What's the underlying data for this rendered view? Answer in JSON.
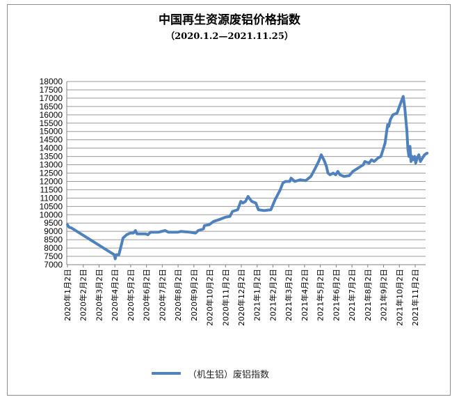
{
  "chart_data": {
    "type": "line",
    "title": "中国再生资源废铝价格指数",
    "subtitle": "（2020.1.2—2021.11.25）",
    "xlabel": "",
    "ylabel": "",
    "ylim": [
      7000,
      18000
    ],
    "y_ticks": [
      7000,
      7500,
      8000,
      8500,
      9000,
      9500,
      10000,
      10500,
      11000,
      11500,
      12000,
      12500,
      13000,
      13500,
      14000,
      14500,
      15000,
      15500,
      16000,
      16500,
      17000,
      17500,
      18000
    ],
    "x_ticks": [
      "2020年1月2日",
      "2020年2月2日",
      "2020年3月2日",
      "2020年4月2日",
      "2020年5月2日",
      "2020年6月2日",
      "2020年7月2日",
      "2020年8月2日",
      "2020年9月2日",
      "2020年10月2日",
      "2020年11月2日",
      "2020年12月2日",
      "2021年1月2日",
      "2021年2月2日",
      "2021年3月2日",
      "2021年4月2日",
      "2021年5月2日",
      "2021年6月2日",
      "2021年7月2日",
      "2021年8月2日",
      "2021年9月2日",
      "2021年10月2日",
      "2021年11月2日"
    ],
    "grid": true,
    "legend_position": "bottom",
    "series": [
      {
        "name": "（机生铝）废铝指数",
        "color": "#4f81bd",
        "points": [
          [
            "2020-01-02",
            9400
          ],
          [
            "2020-01-05",
            9250
          ],
          [
            "2020-01-10",
            9200
          ],
          [
            "2020-04-01",
            7600
          ],
          [
            "2020-04-03",
            7350
          ],
          [
            "2020-04-05",
            7600
          ],
          [
            "2020-04-10",
            7600
          ],
          [
            "2020-04-15",
            8200
          ],
          [
            "2020-04-18",
            8600
          ],
          [
            "2020-04-25",
            8800
          ],
          [
            "2020-05-02",
            8900
          ],
          [
            "2020-05-08",
            8900
          ],
          [
            "2020-05-12",
            9050
          ],
          [
            "2020-05-15",
            8850
          ],
          [
            "2020-06-01",
            8850
          ],
          [
            "2020-06-05",
            8800
          ],
          [
            "2020-06-10",
            8950
          ],
          [
            "2020-06-25",
            8950
          ],
          [
            "2020-07-08",
            9050
          ],
          [
            "2020-07-15",
            8950
          ],
          [
            "2020-08-01",
            8950
          ],
          [
            "2020-08-08",
            9000
          ],
          [
            "2020-08-25",
            8950
          ],
          [
            "2020-09-05",
            8900
          ],
          [
            "2020-09-10",
            9050
          ],
          [
            "2020-09-20",
            9150
          ],
          [
            "2020-09-22",
            9350
          ],
          [
            "2020-10-01",
            9400
          ],
          [
            "2020-10-10",
            9600
          ],
          [
            "2020-10-20",
            9700
          ],
          [
            "2020-11-01",
            9850
          ],
          [
            "2020-11-10",
            9900
          ],
          [
            "2020-11-15",
            10200
          ],
          [
            "2020-11-25",
            10300
          ],
          [
            "2020-12-01",
            10800
          ],
          [
            "2020-12-05",
            10700
          ],
          [
            "2020-12-10",
            10800
          ],
          [
            "2020-12-15",
            11100
          ],
          [
            "2020-12-22",
            10800
          ],
          [
            "2020-12-30",
            10700
          ],
          [
            "2021-01-04",
            10300
          ],
          [
            "2021-01-15",
            10250
          ],
          [
            "2021-01-28",
            10300
          ],
          [
            "2021-02-05",
            10900
          ],
          [
            "2021-02-15",
            11500
          ],
          [
            "2021-02-20",
            11900
          ],
          [
            "2021-02-25",
            12000
          ],
          [
            "2021-03-05",
            12000
          ],
          [
            "2021-03-08",
            12200
          ],
          [
            "2021-03-15",
            12000
          ],
          [
            "2021-03-25",
            12100
          ],
          [
            "2021-04-05",
            12050
          ],
          [
            "2021-04-15",
            12300
          ],
          [
            "2021-04-22",
            12700
          ],
          [
            "2021-04-30",
            13200
          ],
          [
            "2021-05-05",
            13600
          ],
          [
            "2021-05-10",
            13300
          ],
          [
            "2021-05-15",
            12900
          ],
          [
            "2021-05-18",
            12500
          ],
          [
            "2021-05-22",
            12400
          ],
          [
            "2021-05-28",
            12500
          ],
          [
            "2021-06-02",
            12400
          ],
          [
            "2021-06-06",
            12600
          ],
          [
            "2021-06-10",
            12400
          ],
          [
            "2021-06-18",
            12300
          ],
          [
            "2021-06-28",
            12350
          ],
          [
            "2021-07-05",
            12600
          ],
          [
            "2021-07-15",
            12800
          ],
          [
            "2021-07-25",
            13000
          ],
          [
            "2021-07-28",
            13200
          ],
          [
            "2021-08-05",
            13100
          ],
          [
            "2021-08-10",
            13300
          ],
          [
            "2021-08-15",
            13200
          ],
          [
            "2021-08-22",
            13400
          ],
          [
            "2021-08-28",
            13500
          ],
          [
            "2021-09-02",
            14000
          ],
          [
            "2021-09-05",
            14300
          ],
          [
            "2021-09-08",
            15000
          ],
          [
            "2021-09-10",
            15400
          ],
          [
            "2021-09-12",
            15300
          ],
          [
            "2021-09-15",
            15700
          ],
          [
            "2021-09-20",
            16000
          ],
          [
            "2021-09-28",
            16100
          ],
          [
            "2021-10-05",
            16700
          ],
          [
            "2021-10-10",
            17100
          ],
          [
            "2021-10-13",
            16400
          ],
          [
            "2021-10-17",
            15000
          ],
          [
            "2021-10-19",
            13900
          ],
          [
            "2021-10-21",
            13500
          ],
          [
            "2021-10-23",
            14100
          ],
          [
            "2021-10-25",
            13200
          ],
          [
            "2021-10-27",
            13500
          ],
          [
            "2021-10-29",
            13300
          ],
          [
            "2021-11-01",
            13500
          ],
          [
            "2021-11-03",
            13100
          ],
          [
            "2021-11-06",
            13400
          ],
          [
            "2021-11-09",
            13600
          ],
          [
            "2021-11-12",
            13200
          ],
          [
            "2021-11-16",
            13400
          ],
          [
            "2021-11-20",
            13600
          ],
          [
            "2021-11-25",
            13700
          ]
        ]
      }
    ]
  }
}
